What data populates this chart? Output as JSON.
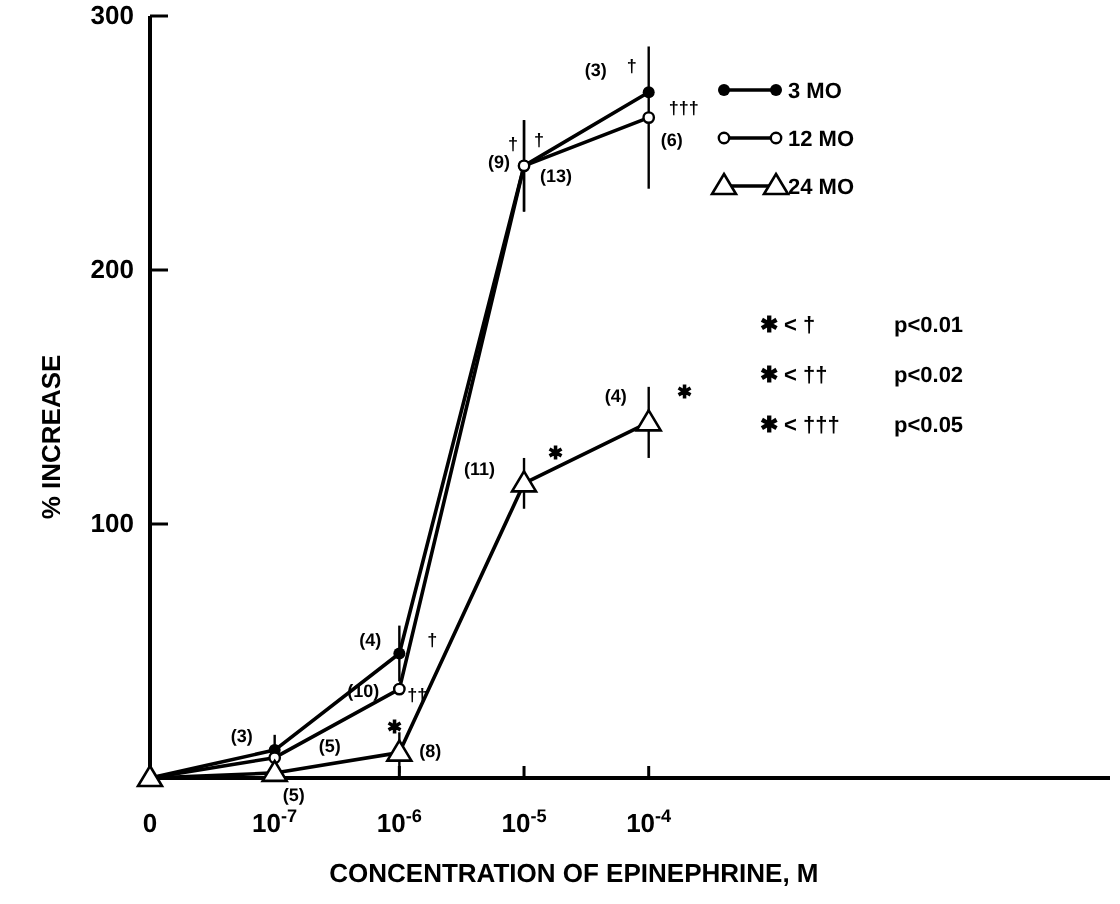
{
  "chart_data": {
    "type": "line",
    "xlabel": "CONCENTRATION OF EPINEPHRINE, M",
    "ylabel": "% INCREASE",
    "categories": [
      "0",
      "10$^{-7}$",
      "10$^{-6}$",
      "10$^{-5}$",
      "10$^{-4}$"
    ],
    "ylim": [
      0,
      300
    ],
    "yticks": [
      100,
      200,
      300
    ],
    "legend": "top right",
    "grid": false,
    "line_style": "solid",
    "series": [
      {
        "name": "3 MO",
        "color": "#000000",
        "marker": "circle",
        "values": [
          0,
          11,
          49,
          241,
          270
        ],
        "errors": [
          null,
          6,
          11,
          18,
          null
        ]
      },
      {
        "name": "12 MO",
        "color": "#000000",
        "marker": "circle-open",
        "values": [
          0,
          8,
          35,
          241,
          260
        ],
        "errors": [
          null,
          null,
          null,
          18,
          28
        ]
      },
      {
        "name": "24 MO",
        "color": "#000000",
        "marker": "triangle",
        "values": [
          0,
          2,
          10,
          116,
          140
        ],
        "errors": [
          null,
          null,
          8,
          10,
          14
        ]
      }
    ],
    "annotations": [
      {
        "text": "(3)",
        "x": "10$^{-7}$",
        "y": 11
      },
      {
        "text": "(5)",
        "x": "10$^{-7}$",
        "y": 8
      },
      {
        "text": "(5)",
        "x": "10$^{-7}$",
        "y": 2
      },
      {
        "text": "(4)",
        "x": "10$^{-6}$",
        "y": 49
      },
      {
        "text": "†",
        "x": "10$^{-6}$",
        "y": 49
      },
      {
        "text": "(10)",
        "x": "10$^{-6}$",
        "y": 35
      },
      {
        "text": "††",
        "x": "10$^{-6}$",
        "y": 35
      },
      {
        "text": "✱",
        "x": "10$^{-6}$",
        "y": 10
      },
      {
        "text": "(8)",
        "x": "10$^{-6}$",
        "y": 10
      },
      {
        "text": "(9)",
        "x": "10$^{-5}$",
        "y": 241
      },
      {
        "text": "†",
        "x": "10$^{-5}$",
        "y": 241
      },
      {
        "text": "†",
        "x": "10$^{-5}$",
        "y": 241
      },
      {
        "text": "(13)",
        "x": "10$^{-5}$",
        "y": 241
      },
      {
        "text": "(11)",
        "x": "10$^{-5}$",
        "y": 116
      },
      {
        "text": "✱",
        "x": "10$^{-5}$",
        "y": 116
      },
      {
        "text": "(3)",
        "x": "10$^{-4}$",
        "y": 270
      },
      {
        "text": "†",
        "x": "10$^{-4}$",
        "y": 270
      },
      {
        "text": "†††",
        "x": "10$^{-4}$",
        "y": 260
      },
      {
        "text": "(6)",
        "x": "10$^{-4}$",
        "y": 260
      },
      {
        "text": "(4)",
        "x": "10$^{-4}$",
        "y": 140
      },
      {
        "text": "✱",
        "x": "10$^{-4}$",
        "y": 140
      },
      "✱ < †",
      "p<0.01",
      "✱ < ††",
      "p<0.02",
      "✱ < †††",
      "p<0.05"
    ]
  }
}
